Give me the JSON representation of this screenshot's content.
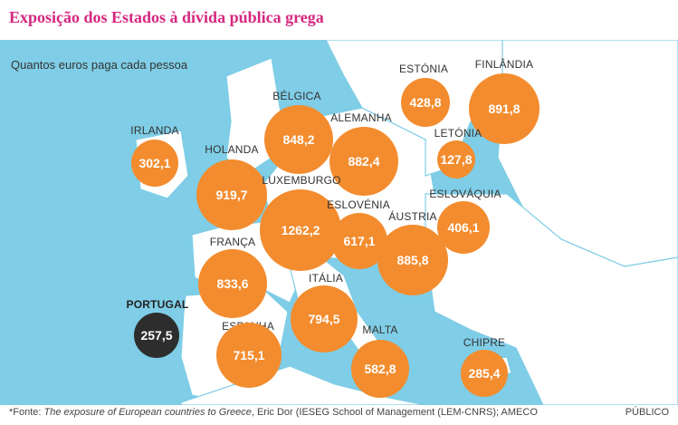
{
  "title": "Exposição dos Estados à dívida pública grega",
  "subtitle": "Quantos euros paga cada pessoa",
  "countries": [
    {
      "id": "irlanda",
      "name": "IRLANDA",
      "value": "302,1"
    },
    {
      "id": "holanda",
      "name": "HOLANDA",
      "value": "919,7"
    },
    {
      "id": "belgica",
      "name": "BÉLGICA",
      "value": "848,2"
    },
    {
      "id": "alemanha",
      "name": "ALEMANHA",
      "value": "882,4"
    },
    {
      "id": "estonia",
      "name": "ESTÓNIA",
      "value": "428,8"
    },
    {
      "id": "finlandia",
      "name": "FINLÂNDIA",
      "value": "891,8"
    },
    {
      "id": "letonia",
      "name": "LETÓNIA",
      "value": "127,8"
    },
    {
      "id": "luxemburgo",
      "name": "LUXEMBURGO",
      "value": "1262,2"
    },
    {
      "id": "eslovenia",
      "name": "ESLOVÉNIA",
      "value": "617,1"
    },
    {
      "id": "austria",
      "name": "ÁUSTRIA",
      "value": "885,8"
    },
    {
      "id": "eslovaquia",
      "name": "ESLOVÁQUIA",
      "value": "406,1"
    },
    {
      "id": "franca",
      "name": "FRANÇA",
      "value": "833,6"
    },
    {
      "id": "italia",
      "name": "ITÁLIA",
      "value": "794,5"
    },
    {
      "id": "portugal",
      "name": "PORTUGAL",
      "value": "257,5"
    },
    {
      "id": "espanha",
      "name": "ESPANHA",
      "value": "715,1"
    },
    {
      "id": "malta",
      "name": "MALTA",
      "value": "582,8"
    },
    {
      "id": "chipre",
      "name": "CHIPRE",
      "value": "285,4"
    }
  ],
  "footer": {
    "prefix": "*Fonte: ",
    "work": "The exposure of European countries to Greece",
    "rest": ", Eric Dor (IESEG School of Management (LEM-CNRS); AMECO"
  },
  "brand": "PÚBLICO",
  "colors": {
    "title": "#d6277f",
    "sea": "#7fcde6",
    "land": "#ffffff",
    "bubble": "#f38c2e",
    "highlight": "#2d2d2d"
  }
}
